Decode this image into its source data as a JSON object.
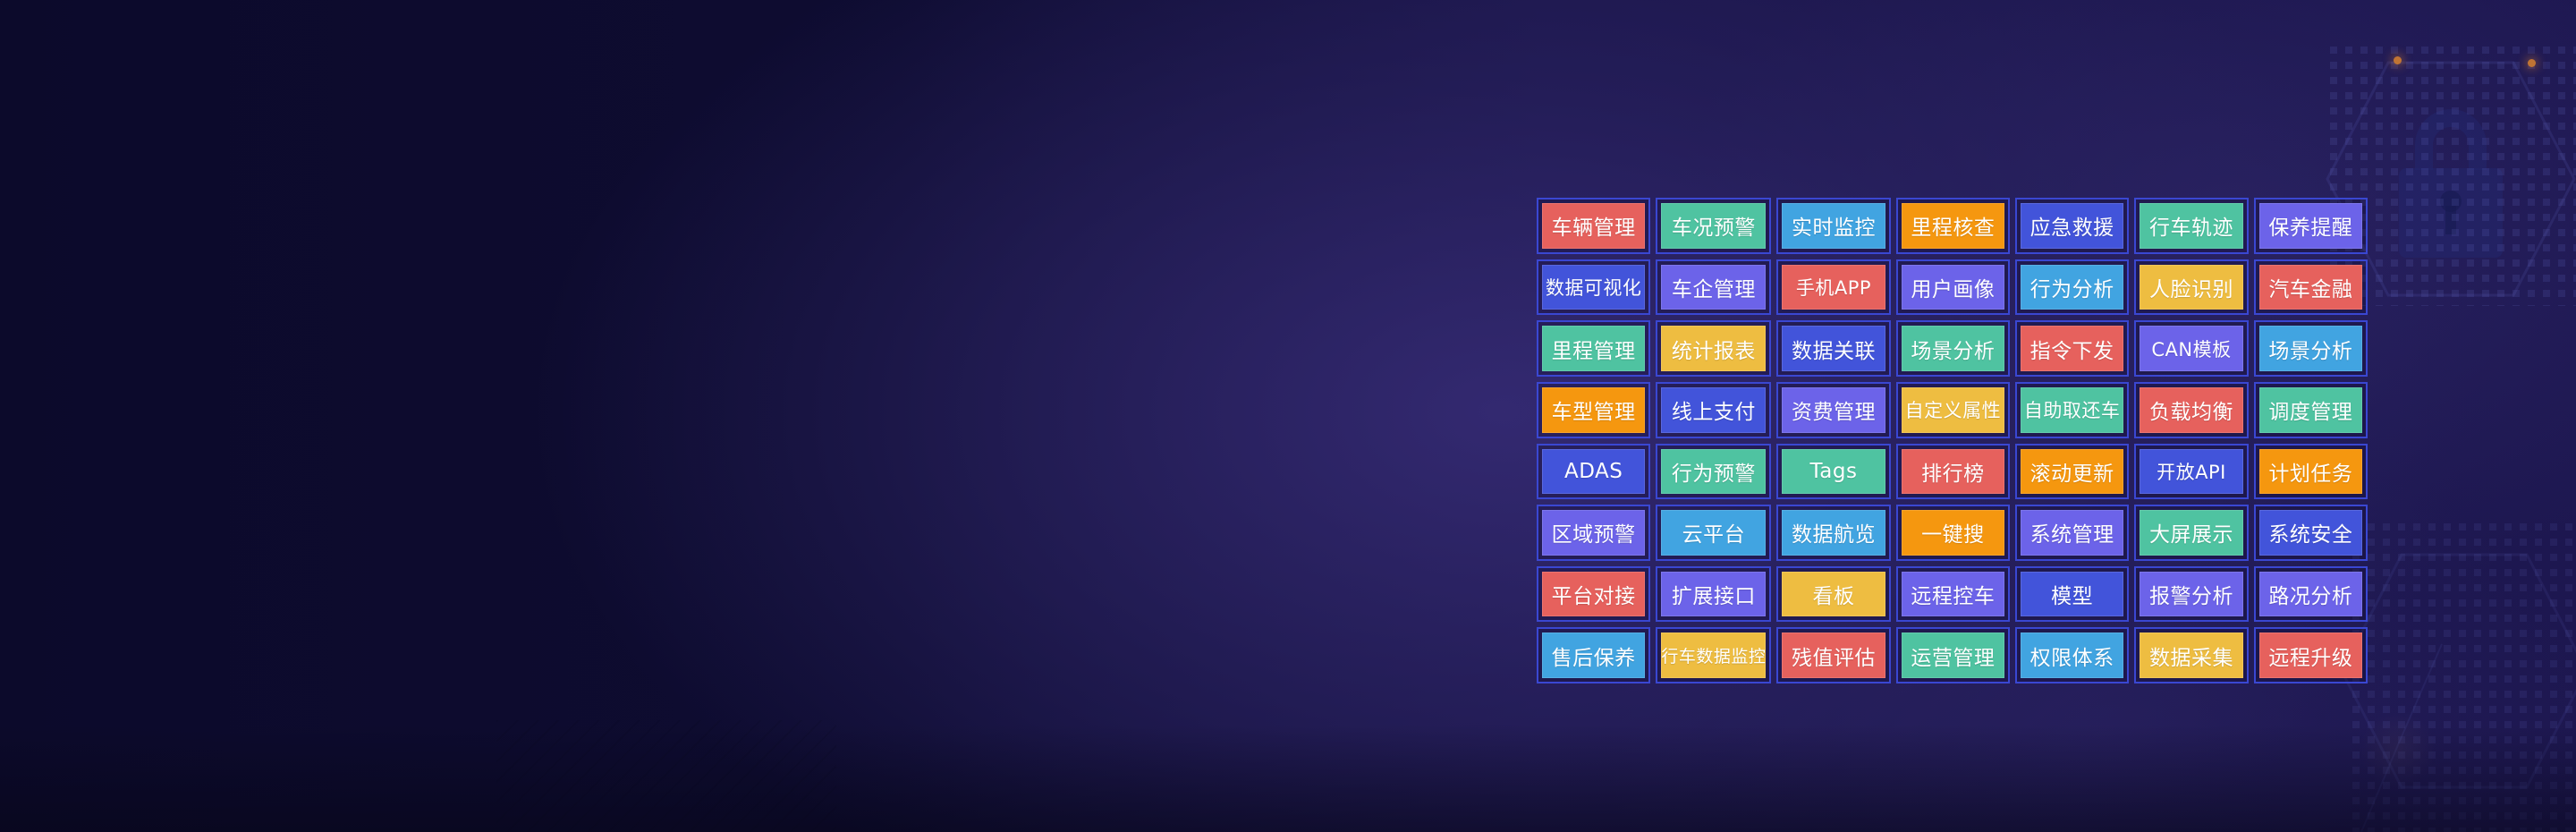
{
  "background": {
    "base_color": "#0d0b2e",
    "glow_color": "#382d78",
    "bottom_shade_color": "#060516",
    "dot_pattern_color": "#707ad7",
    "accent_dot_color": "#c07434",
    "lock_decor_color": "#23286e",
    "hexagon_outline_color": "#6a74d8",
    "decor_icons": [
      "lock-icon",
      "hexagon-outline",
      "dot-grid-pattern"
    ]
  },
  "palette": {
    "red": "#e6615d",
    "teal": "#4fc3a1",
    "cyan": "#41a4e1",
    "orange": "#f5970f",
    "indigo": "#4254da",
    "violet": "#6c63e9",
    "yellow": "#eebd41"
  },
  "grid": {
    "columns": 7,
    "rows": 8,
    "cell_border_color": "#3a47d2",
    "items": [
      {
        "label": "车辆管理",
        "color": "red"
      },
      {
        "label": "车况预警",
        "color": "teal"
      },
      {
        "label": "实时监控",
        "color": "cyan"
      },
      {
        "label": "里程核查",
        "color": "orange"
      },
      {
        "label": "应急救援",
        "color": "indigo"
      },
      {
        "label": "行车轨迹",
        "color": "teal"
      },
      {
        "label": "保养提醒",
        "color": "violet"
      },
      {
        "label": "数据可视化",
        "color": "indigo"
      },
      {
        "label": "车企管理",
        "color": "violet"
      },
      {
        "label": "手机APP",
        "color": "red"
      },
      {
        "label": "用户画像",
        "color": "violet"
      },
      {
        "label": "行为分析",
        "color": "cyan"
      },
      {
        "label": "人脸识别",
        "color": "yellow"
      },
      {
        "label": "汽车金融",
        "color": "red"
      },
      {
        "label": "里程管理",
        "color": "teal"
      },
      {
        "label": "统计报表",
        "color": "yellow"
      },
      {
        "label": "数据关联",
        "color": "indigo"
      },
      {
        "label": "场景分析",
        "color": "teal"
      },
      {
        "label": "指令下发",
        "color": "red"
      },
      {
        "label": "CAN模板",
        "color": "violet"
      },
      {
        "label": "场景分析",
        "color": "cyan"
      },
      {
        "label": "车型管理",
        "color": "orange"
      },
      {
        "label": "线上支付",
        "color": "indigo"
      },
      {
        "label": "资费管理",
        "color": "violet"
      },
      {
        "label": "自定义属性",
        "color": "yellow"
      },
      {
        "label": "自助取还车",
        "color": "teal"
      },
      {
        "label": "负载均衡",
        "color": "red"
      },
      {
        "label": "调度管理",
        "color": "teal"
      },
      {
        "label": "ADAS",
        "color": "indigo"
      },
      {
        "label": "行为预警",
        "color": "teal"
      },
      {
        "label": "Tags",
        "color": "teal"
      },
      {
        "label": "排行榜",
        "color": "red"
      },
      {
        "label": "滚动更新",
        "color": "orange"
      },
      {
        "label": "开放API",
        "color": "indigo"
      },
      {
        "label": "计划任务",
        "color": "orange"
      },
      {
        "label": "区域预警",
        "color": "violet"
      },
      {
        "label": "云平台",
        "color": "cyan"
      },
      {
        "label": "数据航览",
        "color": "cyan"
      },
      {
        "label": "一键搜",
        "color": "orange"
      },
      {
        "label": "系统管理",
        "color": "violet"
      },
      {
        "label": "大屏展示",
        "color": "teal"
      },
      {
        "label": "系统安全",
        "color": "indigo"
      },
      {
        "label": "平台对接",
        "color": "red"
      },
      {
        "label": "扩展接口",
        "color": "violet"
      },
      {
        "label": "看板",
        "color": "yellow"
      },
      {
        "label": "远程控车",
        "color": "violet"
      },
      {
        "label": "模型",
        "color": "indigo"
      },
      {
        "label": "报警分析",
        "color": "violet"
      },
      {
        "label": "路况分析",
        "color": "violet"
      },
      {
        "label": "售后保养",
        "color": "cyan"
      },
      {
        "label": "行车数据监控",
        "color": "yellow"
      },
      {
        "label": "残值评估",
        "color": "red"
      },
      {
        "label": "运营管理",
        "color": "teal"
      },
      {
        "label": "权限体系",
        "color": "cyan"
      },
      {
        "label": "数据采集",
        "color": "yellow"
      },
      {
        "label": "远程升级",
        "color": "red"
      }
    ]
  }
}
